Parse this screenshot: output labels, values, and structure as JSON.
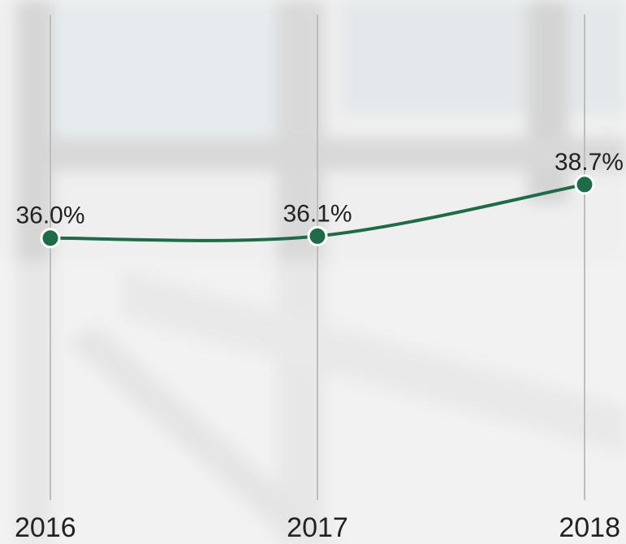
{
  "chart_data": {
    "type": "line",
    "categories": [
      "2016",
      "2017",
      "2018"
    ],
    "series": [
      {
        "color": "#1f6b47",
        "values": [
          36.0,
          36.1,
          38.7
        ],
        "value_labels": [
          "36.0%",
          "36.1%",
          "38.7%"
        ]
      }
    ],
    "ylim": [
      23,
      48
    ],
    "grid": true
  }
}
